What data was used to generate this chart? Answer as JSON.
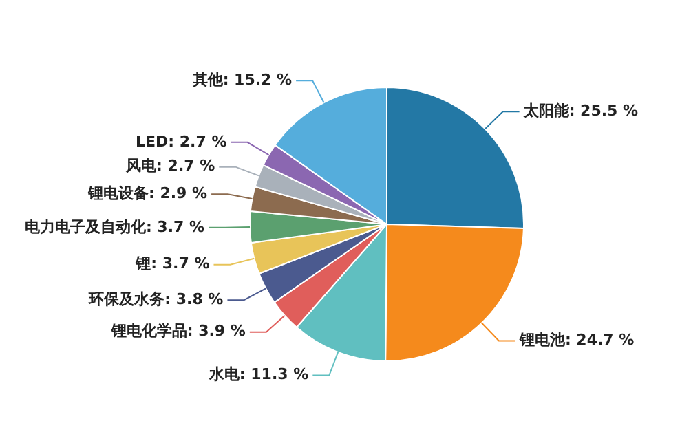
{
  "chart_data": {
    "type": "pie",
    "categories": [
      "太阳能",
      "锂电池",
      "水电",
      "锂电化学品",
      "环保及水务",
      "锂",
      "电力电子及自动化",
      "锂电设备",
      "风电",
      "LED",
      "其他"
    ],
    "values": [
      25.5,
      24.7,
      11.3,
      3.9,
      3.8,
      3.7,
      3.7,
      2.9,
      2.7,
      2.7,
      15.2
    ],
    "value_labels": [
      "25.5 %",
      "24.7 %",
      "11.3 %",
      "3.9 %",
      "3.8 %",
      "3.7 %",
      "3.7 %",
      "2.9 %",
      "2.7 %",
      "2.7 %",
      "15.2 %"
    ],
    "colors": [
      "#2378a5",
      "#f58a1c",
      "#60bfc0",
      "#e05e5b",
      "#4b5a8f",
      "#e8c459",
      "#5ba06f",
      "#8c6b4f",
      "#a9b1ba",
      "#8b67b1",
      "#55addc"
    ],
    "legend": false
  }
}
